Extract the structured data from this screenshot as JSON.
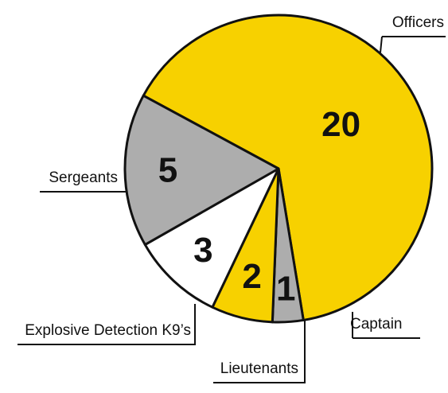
{
  "chart_data": {
    "type": "pie",
    "categories": [
      "Officers",
      "Captain",
      "Lieutenants",
      "Explosive Detection K9’s",
      "Sergeants"
    ],
    "values": [
      20,
      1,
      2,
      3,
      5
    ],
    "colors": [
      "#f7d100",
      "#adadad",
      "#f7d100",
      "#ffffff",
      "#adadad"
    ]
  }
}
